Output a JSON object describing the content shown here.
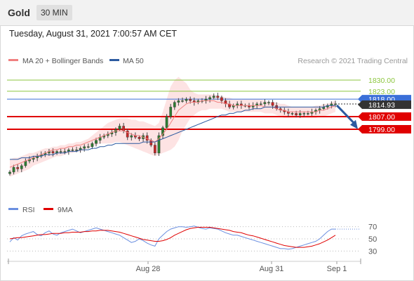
{
  "header": {
    "instrument": "Gold",
    "interval": "30 MIN",
    "timestamp": "Tuesday, August 31, 2021 7:00:57 AM CET"
  },
  "legend": {
    "bollinger": "MA 20 + Bollinger Bands",
    "ma50": "MA 50",
    "copyright": "Research © 2021 Trading Central",
    "rsi": "RSI",
    "ma9": "9MA"
  },
  "colors": {
    "bollinger": "#f08080",
    "band_fill": "#fde0e0",
    "ma50": "#2c5aa0",
    "resistance": "#8cc63f",
    "support": "#e00000",
    "pivot": "#3a6fd8",
    "current": "#333333",
    "bull_candle": "#2e7d32",
    "bear_candle": "#c62828",
    "arrow": "#2c5aa0",
    "rsi": "#6a8fe0",
    "rsi_ma": "#e00000"
  },
  "chart_data": [
    {
      "type": "candlestick",
      "ylim": [
        1760,
        1838
      ],
      "x_ticks": [
        "Aug 28",
        "Aug 31",
        "Sep 1"
      ],
      "levels": [
        {
          "value": 1830.0,
          "label": "1830.00",
          "kind": "resistance"
        },
        {
          "value": 1823.0,
          "label": "1823.00",
          "kind": "resistance"
        },
        {
          "value": 1818.0,
          "label": "1818.00",
          "kind": "pivot"
        },
        {
          "value": 1814.93,
          "label": "1814.93",
          "kind": "current"
        },
        {
          "value": 1807.0,
          "label": "1807.00",
          "kind": "support"
        },
        {
          "value": 1799.0,
          "label": "1799.00",
          "kind": "support"
        }
      ],
      "close": [
        1772,
        1775,
        1774,
        1776,
        1779,
        1780,
        1781,
        1782,
        1783,
        1784,
        1785,
        1784,
        1785,
        1785,
        1785,
        1786,
        1786,
        1786,
        1787,
        1788,
        1788,
        1790,
        1792,
        1794,
        1795,
        1796,
        1797,
        1799,
        1801,
        1798,
        1794,
        1795,
        1794,
        1793,
        1795,
        1792,
        1789,
        1784,
        1795,
        1800,
        1807,
        1813,
        1816,
        1817,
        1817,
        1818,
        1817,
        1816,
        1817,
        1817,
        1818,
        1819,
        1820,
        1819,
        1817,
        1815,
        1813,
        1814,
        1815,
        1814,
        1814,
        1813,
        1814,
        1815,
        1815,
        1816,
        1816,
        1814,
        1812,
        1811,
        1810,
        1809,
        1809,
        1808,
        1809,
        1809,
        1809,
        1810,
        1811,
        1812,
        1813,
        1814,
        1815,
        1815
      ],
      "bollinger_middle": [
        1775,
        1776,
        1777,
        1778,
        1779,
        1780,
        1781,
        1782,
        1783,
        1784,
        1785,
        1786,
        1786,
        1787,
        1787,
        1788,
        1788,
        1789,
        1789,
        1790,
        1791,
        1792,
        1793,
        1794,
        1795,
        1796,
        1797,
        1798,
        1798,
        1798,
        1797,
        1796,
        1795,
        1795,
        1794,
        1793,
        1792,
        1791,
        1793,
        1796,
        1799,
        1803,
        1807,
        1811,
        1813,
        1815,
        1816,
        1816,
        1816,
        1817,
        1817,
        1817,
        1817,
        1816,
        1816,
        1815,
        1815,
        1814,
        1814,
        1814,
        1814,
        1814,
        1814,
        1814,
        1814,
        1813,
        1813,
        1813,
        1812,
        1811,
        1811,
        1810,
        1810,
        1810,
        1810,
        1810,
        1810,
        1810,
        1810,
        1811,
        1811,
        1812,
        1813,
        1814
      ],
      "bollinger_upper": [
        1780,
        1781,
        1781,
        1782,
        1783,
        1784,
        1784,
        1785,
        1786,
        1787,
        1787,
        1788,
        1788,
        1789,
        1789,
        1790,
        1790,
        1791,
        1791,
        1792,
        1793,
        1795,
        1797,
        1799,
        1801,
        1803,
        1804,
        1805,
        1806,
        1806,
        1806,
        1805,
        1805,
        1804,
        1804,
        1803,
        1802,
        1801,
        1803,
        1810,
        1818,
        1826,
        1830,
        1832,
        1830,
        1828,
        1824,
        1822,
        1821,
        1821,
        1821,
        1821,
        1821,
        1820,
        1820,
        1819,
        1819,
        1818,
        1818,
        1818,
        1818,
        1818,
        1818,
        1818,
        1818,
        1817,
        1816,
        1816,
        1816,
        1815,
        1815,
        1814,
        1813,
        1813,
        1813,
        1813,
        1813,
        1813,
        1814,
        1814,
        1815,
        1815,
        1816,
        1817
      ],
      "bollinger_lower": [
        1769,
        1770,
        1771,
        1772,
        1773,
        1774,
        1776,
        1777,
        1778,
        1779,
        1780,
        1781,
        1782,
        1782,
        1783,
        1784,
        1784,
        1785,
        1785,
        1786,
        1787,
        1788,
        1789,
        1790,
        1790,
        1790,
        1790,
        1791,
        1791,
        1790,
        1789,
        1788,
        1787,
        1786,
        1785,
        1784,
        1783,
        1782,
        1783,
        1784,
        1785,
        1786,
        1788,
        1792,
        1798,
        1802,
        1806,
        1808,
        1810,
        1811,
        1811,
        1812,
        1812,
        1812,
        1812,
        1811,
        1810,
        1810,
        1810,
        1810,
        1810,
        1810,
        1810,
        1810,
        1810,
        1809,
        1809,
        1809,
        1808,
        1807,
        1806,
        1806,
        1806,
        1806,
        1806,
        1806,
        1806,
        1806,
        1806,
        1807,
        1807,
        1808,
        1809,
        1810
      ],
      "ma50": [
        1780,
        1780,
        1780,
        1781,
        1781,
        1781,
        1782,
        1782,
        1782,
        1783,
        1783,
        1783,
        1784,
        1784,
        1784,
        1785,
        1785,
        1785,
        1786,
        1786,
        1786,
        1787,
        1787,
        1788,
        1788,
        1789,
        1789,
        1790,
        1790,
        1790,
        1790,
        1790,
        1790,
        1790,
        1791,
        1791,
        1791,
        1791,
        1792,
        1793,
        1794,
        1795,
        1796,
        1797,
        1798,
        1799,
        1800,
        1801,
        1802,
        1803,
        1804,
        1805,
        1806,
        1807,
        1808,
        1808,
        1809,
        1809,
        1810,
        1810,
        1811,
        1811,
        1812,
        1812,
        1812,
        1813,
        1813,
        1813,
        1813,
        1813,
        1813,
        1813,
        1813,
        1813,
        1813,
        1813,
        1813,
        1813,
        1813,
        1813,
        1813,
        1814,
        1814,
        1814
      ]
    },
    {
      "type": "line",
      "ylim": [
        20,
        80
      ],
      "y_ticks": [
        70,
        50,
        30
      ],
      "series": [
        {
          "name": "RSI",
          "values": [
            45,
            52,
            48,
            55,
            58,
            60,
            62,
            57,
            55,
            60,
            63,
            58,
            56,
            60,
            62,
            64,
            66,
            63,
            60,
            62,
            64,
            66,
            68,
            66,
            64,
            62,
            60,
            58,
            56,
            52,
            48,
            44,
            46,
            50,
            47,
            43,
            40,
            38,
            50,
            56,
            62,
            66,
            68,
            70,
            70,
            69,
            70,
            71,
            69,
            67,
            66,
            68,
            67,
            66,
            63,
            60,
            58,
            56,
            56,
            54,
            52,
            50,
            48,
            46,
            44,
            42,
            40,
            38,
            36,
            34,
            34,
            33,
            34,
            36,
            38,
            40,
            42,
            44,
            46,
            50,
            56,
            62,
            66,
            66
          ]
        },
        {
          "name": "9MA",
          "values": [
            50,
            51,
            52,
            52,
            53,
            54,
            55,
            56,
            57,
            57,
            58,
            59,
            59,
            59,
            60,
            60,
            61,
            61,
            61,
            62,
            62,
            63,
            63,
            64,
            64,
            64,
            63,
            62,
            61,
            59,
            57,
            55,
            53,
            51,
            49,
            48,
            47,
            46,
            46,
            47,
            49,
            52,
            56,
            59,
            62,
            65,
            67,
            68,
            69,
            69,
            69,
            69,
            68,
            67,
            66,
            65,
            64,
            62,
            61,
            60,
            58,
            56,
            55,
            53,
            51,
            49,
            47,
            45,
            43,
            41,
            39,
            38,
            37,
            36,
            36,
            36,
            37,
            38,
            40,
            42,
            45,
            48,
            52,
            56
          ]
        }
      ]
    }
  ]
}
